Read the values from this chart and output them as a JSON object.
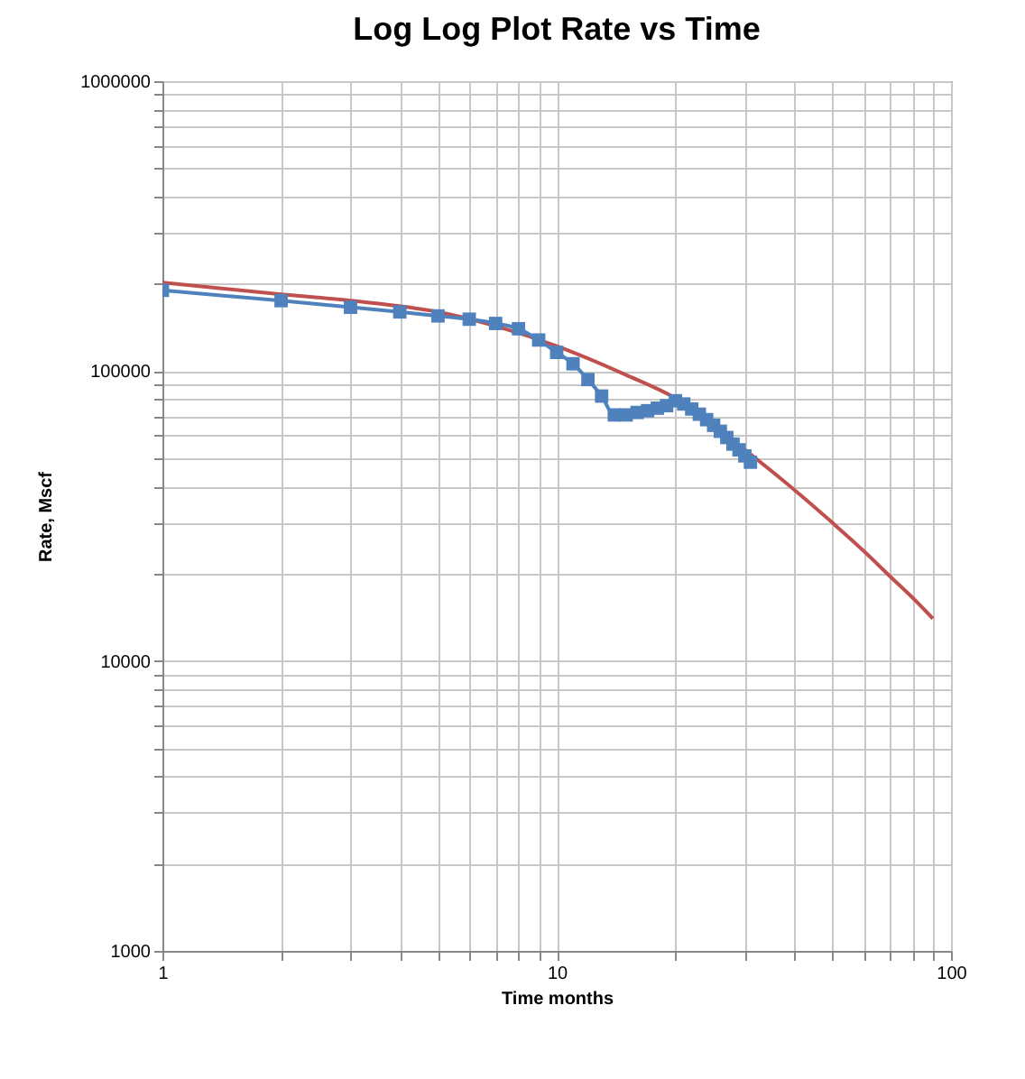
{
  "chart_data": {
    "type": "line",
    "title": "Log Log Plot Rate vs Time",
    "xlabel": "Time months",
    "ylabel": "Rate, Mscf",
    "log": "xy",
    "grid": true,
    "xlim": [
      1,
      100
    ],
    "ylim": [
      1000,
      1000000
    ],
    "xticks": [
      1,
      {
        "value": 2,
        "label": null
      },
      {
        "value": 3,
        "label": null
      },
      {
        "value": 4,
        "label": null
      },
      {
        "value": 5,
        "label": null
      },
      {
        "value": 6,
        "label": null
      },
      {
        "value": 7,
        "label": null
      },
      {
        "value": 8,
        "label": null
      },
      {
        "value": 9,
        "label": null
      },
      10,
      {
        "value": 20,
        "label": null
      },
      {
        "value": 30,
        "label": null
      },
      {
        "value": 40,
        "label": null
      },
      {
        "value": 50,
        "label": null
      },
      {
        "value": 60,
        "label": null
      },
      {
        "value": 70,
        "label": null
      },
      {
        "value": 80,
        "label": null
      },
      {
        "value": 90,
        "label": null
      },
      100
    ],
    "yticks": [
      1000,
      {
        "value": 2000,
        "label": null
      },
      {
        "value": 3000,
        "label": null
      },
      {
        "value": 4000,
        "label": null
      },
      {
        "value": 5000,
        "label": null
      },
      {
        "value": 6000,
        "label": null
      },
      {
        "value": 7000,
        "label": null
      },
      {
        "value": 8000,
        "label": null
      },
      {
        "value": 9000,
        "label": null
      },
      10000,
      {
        "value": 20000,
        "label": null
      },
      {
        "value": 30000,
        "label": null
      },
      {
        "value": 40000,
        "label": null
      },
      {
        "value": 50000,
        "label": null
      },
      {
        "value": 60000,
        "label": null
      },
      {
        "value": 70000,
        "label": null
      },
      {
        "value": 80000,
        "label": null
      },
      {
        "value": 90000,
        "label": null
      },
      100000,
      {
        "value": 200000,
        "label": null
      },
      {
        "value": 300000,
        "label": null
      },
      {
        "value": 400000,
        "label": null
      },
      {
        "value": 500000,
        "label": null
      },
      {
        "value": 600000,
        "label": null
      },
      {
        "value": 700000,
        "label": null
      },
      {
        "value": 800000,
        "label": null
      },
      {
        "value": 900000,
        "label": null
      },
      1000000
    ],
    "series": [
      {
        "color": "#c0504d",
        "marker": "none",
        "x": [
          1,
          2,
          3,
          5,
          7,
          10,
          15,
          20,
          30,
          40,
          50,
          60,
          70,
          80,
          90
        ],
        "values": [
          202000,
          184000,
          175000,
          160000,
          143000,
          122000,
          97000,
          80700,
          53500,
          39000,
          30000,
          24000,
          19600,
          16500,
          14000
        ]
      },
      {
        "color": "#4f81bd",
        "marker": "square",
        "x": [
          1,
          2,
          3,
          4,
          5,
          6,
          7,
          8,
          9,
          10,
          11,
          12,
          13,
          14,
          15,
          16,
          17,
          18,
          19,
          20,
          21,
          22,
          23,
          24,
          25,
          26,
          27,
          28,
          29,
          30,
          31
        ],
        "values": [
          190000,
          175000,
          166000,
          160000,
          155000,
          151000,
          146000,
          140000,
          128000,
          116000,
          106000,
          93500,
          82000,
          70600,
          70600,
          72000,
          73000,
          74500,
          76000,
          79000,
          77000,
          74000,
          71000,
          68000,
          65000,
          62000,
          59000,
          56000,
          53500,
          51000,
          48500
        ]
      }
    ]
  }
}
